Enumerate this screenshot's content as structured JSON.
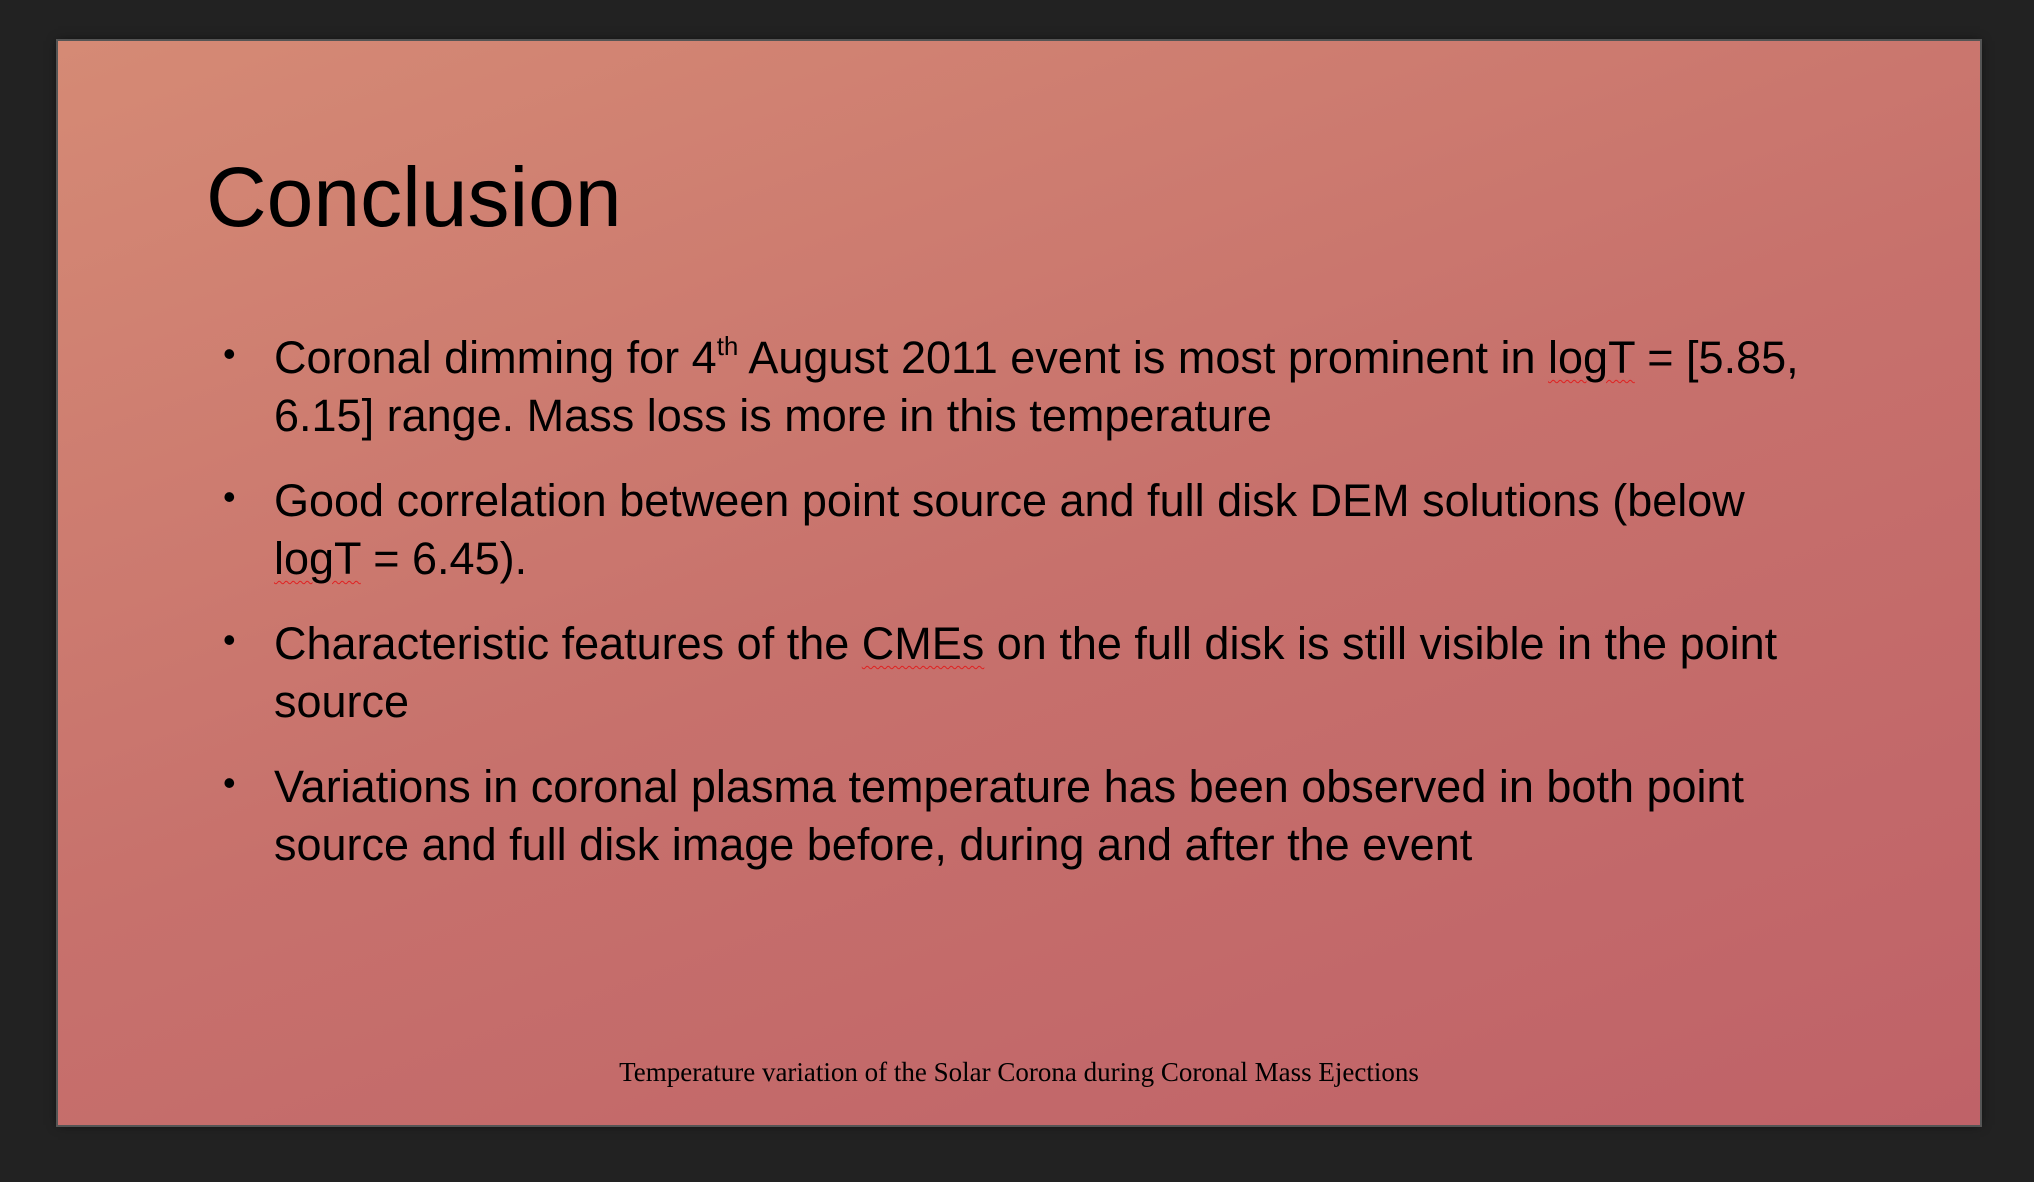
{
  "slide": {
    "title": "Conclusion",
    "bullets": [
      {
        "parts": [
          "Coronal dimming for 4",
          "th",
          " August 2011 event is most prominent in ",
          "logT",
          " = [5.85, 6.15] range. Mass loss is more in this temperature"
        ]
      },
      {
        "parts": [
          "Good correlation between point source and full disk DEM solutions (below ",
          "logT",
          " = 6.45)."
        ]
      },
      {
        "parts": [
          "Characteristic features of the ",
          "CMEs",
          " on the full disk is still visible in the point source"
        ]
      },
      {
        "parts": [
          "Variations in coronal plasma temperature has been observed in both point source and full disk image before, during and after the event"
        ]
      }
    ],
    "bullet_glyph": "•",
    "footer": "Temperature variation of the Solar Corona during Coronal Mass Ejections"
  },
  "colors": {
    "background": "#222222",
    "slide_gradient_start": "#d58a75",
    "slide_gradient_end": "#bf6268",
    "text": "#000000",
    "spellcheck_underline": "#e02020"
  }
}
